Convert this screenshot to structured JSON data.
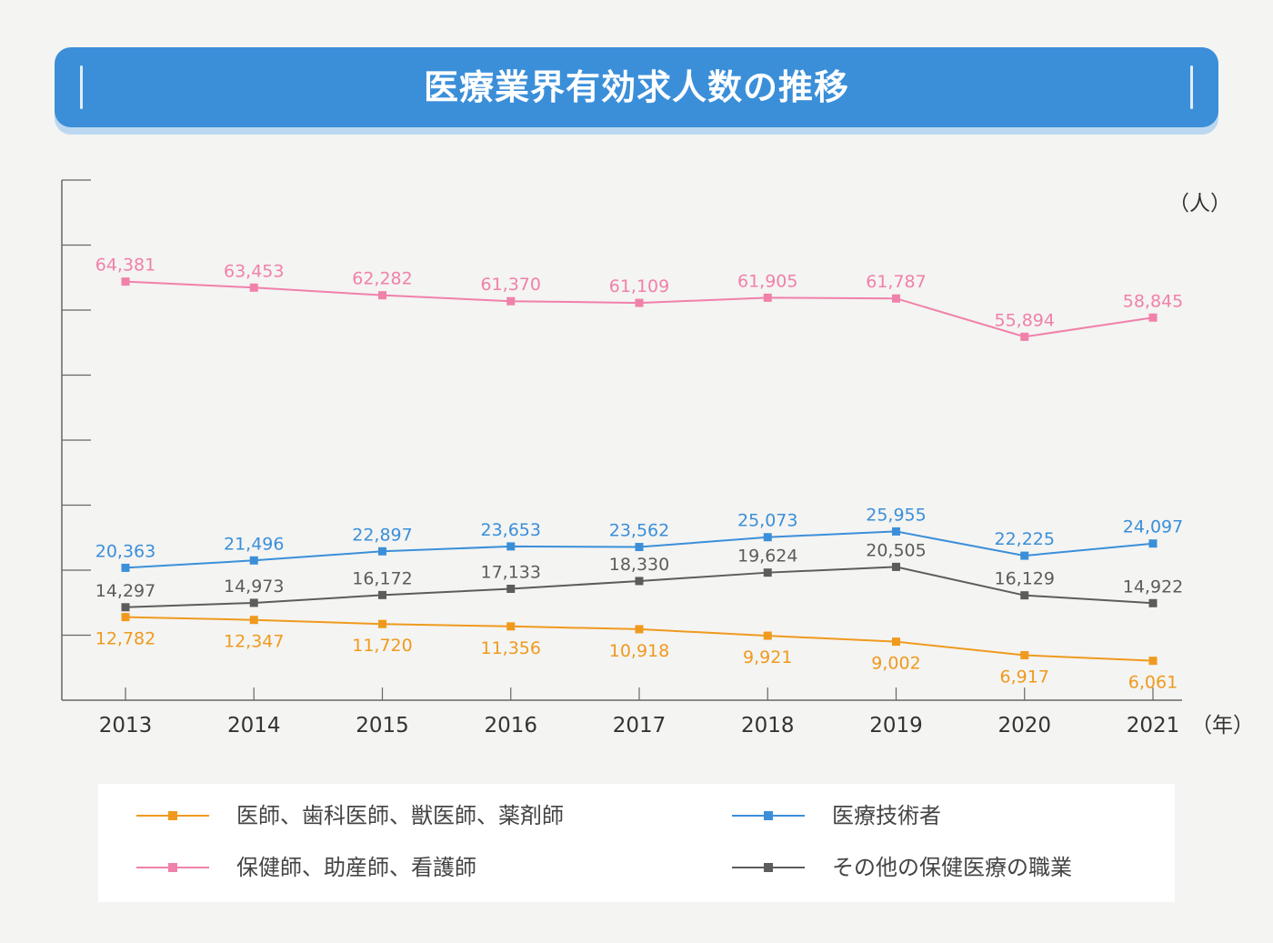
{
  "title": "医療業界有効求人数の推移",
  "chart_data": {
    "type": "line",
    "title": "医療業界有効求人数の推移",
    "ylabel": "（人）",
    "xlabel": "（年）",
    "ylim": [
      0,
      80000
    ],
    "grid": false,
    "legend_position": "bottom",
    "x": [
      "2013",
      "2014",
      "2015",
      "2016",
      "2017",
      "2018",
      "2019",
      "2020",
      "2021"
    ],
    "series": [
      {
        "name": "保健師、助産師、看護師",
        "color": "#f081aa",
        "values": [
          64381,
          63453,
          62282,
          61370,
          61109,
          61905,
          61787,
          55894,
          58845
        ],
        "labels": [
          "64,381",
          "63,453",
          "62,282",
          "61,370",
          "61,109",
          "61,905",
          "61,787",
          "55,894",
          "58,845"
        ]
      },
      {
        "name": "医療技術者",
        "color": "#3b8fd9",
        "values": [
          20363,
          21496,
          22897,
          23653,
          23562,
          25073,
          25955,
          22225,
          24097
        ],
        "labels": [
          "20,363",
          "21,496",
          "22,897",
          "23,653",
          "23,562",
          "25,073",
          "25,955",
          "22,225",
          "24,097"
        ]
      },
      {
        "name": "その他の保健医療の職業",
        "color": "#5c5c5c",
        "values": [
          14297,
          14973,
          16172,
          17133,
          18330,
          19624,
          20505,
          16129,
          14922
        ],
        "labels": [
          "14,297",
          "14,973",
          "16,172",
          "17,133",
          "18,330",
          "19,624",
          "20,505",
          "16,129",
          "14,922"
        ]
      },
      {
        "name": "医師、歯科医師、獣医師、薬剤師",
        "color": "#ef9a1e",
        "values": [
          12782,
          12347,
          11720,
          11356,
          10918,
          9921,
          9002,
          6917,
          6061
        ],
        "labels": [
          "12,782",
          "12,347",
          "11,720",
          "11,356",
          "10,918",
          "9,921",
          "9,002",
          "6,917",
          "6,061"
        ]
      }
    ]
  },
  "legend": [
    {
      "label": "医師、歯科医師、獣医師、薬剤師",
      "color": "#ef9a1e"
    },
    {
      "label": "医療技術者",
      "color": "#3b8fd9"
    },
    {
      "label": "保健師、助産師、看護師",
      "color": "#f081aa"
    },
    {
      "label": "その他の保健医療の職業",
      "color": "#5c5c5c"
    }
  ]
}
